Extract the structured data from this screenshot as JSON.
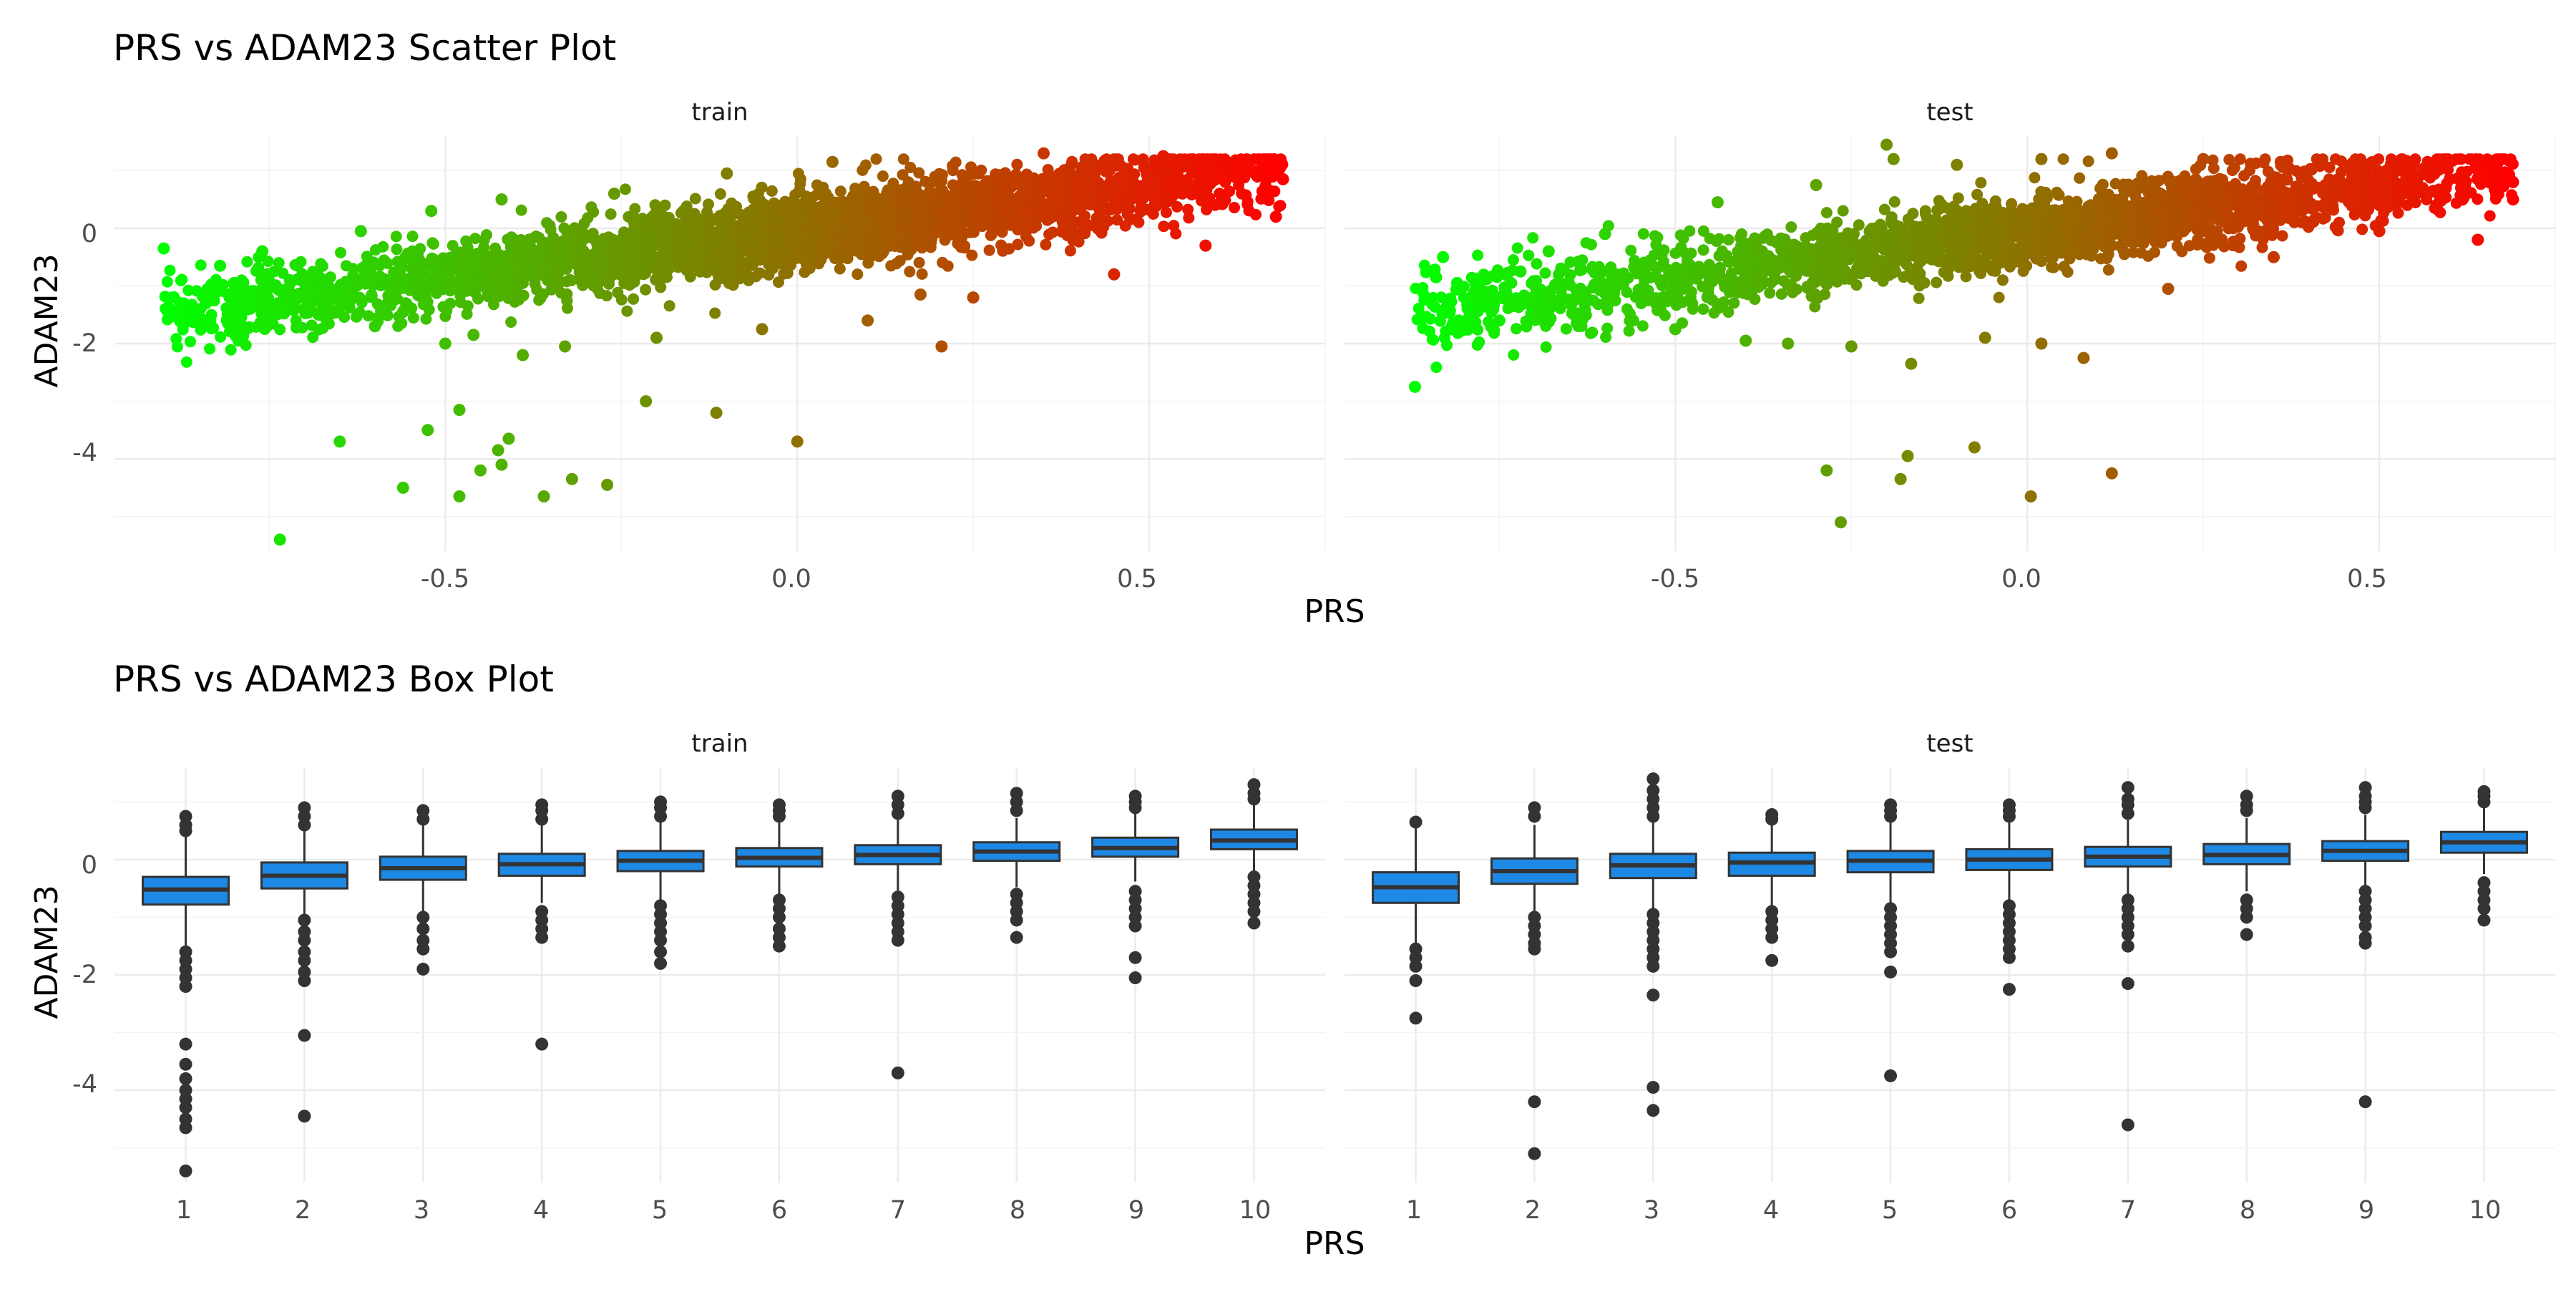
{
  "chart_data": [
    {
      "type": "scatter",
      "title": "PRS vs ADAM23 Scatter Plot",
      "xlabel": "PRS",
      "ylabel": "ADAM23",
      "xlim": [
        -0.97,
        0.75
      ],
      "ylim": [
        -5.6,
        1.6
      ],
      "x_ticks": [
        -0.5,
        0.0,
        0.5
      ],
      "x_tick_labels": [
        "-0.5",
        "0.0",
        "0.5"
      ],
      "y_ticks": [
        -4,
        -2,
        0
      ],
      "y_tick_labels": [
        "-4",
        "-2",
        "0"
      ],
      "grid": true,
      "color_scale": {
        "low": "#00ff00",
        "high": "#ff0000"
      },
      "approx_relationship": {
        "slope": 1.6,
        "intercept": -0.05
      },
      "facets": [
        {
          "label": "train",
          "x_range": [
            -0.9,
            0.69
          ],
          "points": [
            [
              -0.9,
              -0.35
            ],
            [
              -0.86,
              -1.45
            ],
            [
              -0.84,
              -1.3
            ],
            [
              -0.83,
              -1.05
            ],
            [
              -0.82,
              -0.65
            ],
            [
              -0.8,
              -1.6
            ],
            [
              -0.8,
              -0.95
            ],
            [
              -0.78,
              -1.2
            ],
            [
              -0.76,
              -0.4
            ],
            [
              -0.75,
              -1.35
            ],
            [
              -0.72,
              -1.25
            ],
            [
              -0.7,
              -0.9
            ],
            [
              -0.68,
              -1.5
            ],
            [
              -0.66,
              -1.1
            ],
            [
              -0.62,
              -0.05
            ],
            [
              -0.6,
              -1.7
            ],
            [
              -0.56,
              -1.45
            ],
            [
              -0.52,
              0.3
            ],
            [
              -0.5,
              -2.0
            ],
            [
              -0.46,
              -1.85
            ],
            [
              -0.42,
              0.5
            ],
            [
              -0.39,
              -2.2
            ],
            [
              -0.33,
              -2.05
            ],
            [
              -0.26,
              0.6
            ],
            [
              -0.2,
              -1.9
            ],
            [
              -0.1,
              0.95
            ],
            [
              -0.05,
              -1.75
            ],
            [
              0.05,
              1.15
            ],
            [
              0.1,
              -1.6
            ],
            [
              0.25,
              -1.2
            ],
            [
              0.35,
              1.3
            ],
            [
              0.45,
              -0.8
            ],
            [
              0.52,
              1.25
            ],
            [
              0.58,
              -0.3
            ],
            [
              0.65,
              0.95
            ],
            [
              0.69,
              0.85
            ],
            [
              0.68,
              0.2
            ],
            [
              0.67,
              0.6
            ],
            [
              0.63,
              1.0
            ],
            [
              -0.735,
              -5.4
            ],
            [
              -0.65,
              -3.7
            ],
            [
              -0.56,
              -4.5
            ],
            [
              -0.525,
              -3.5
            ],
            [
              -0.48,
              -3.15
            ],
            [
              -0.48,
              -4.65
            ],
            [
              -0.45,
              -4.2
            ],
            [
              -0.425,
              -3.85
            ],
            [
              -0.42,
              -4.1
            ],
            [
              -0.41,
              -3.65
            ],
            [
              -0.36,
              -4.65
            ],
            [
              -0.32,
              -4.35
            ],
            [
              -0.27,
              -4.45
            ],
            [
              -0.215,
              -3.0
            ],
            [
              -0.115,
              -3.2
            ],
            [
              0.0,
              -3.7
            ],
            [
              0.175,
              -1.15
            ],
            [
              0.205,
              -2.05
            ]
          ]
        },
        {
          "label": "test",
          "x_range": [
            -0.87,
            0.69
          ],
          "points": [
            [
              -0.87,
              -2.75
            ],
            [
              -0.84,
              -0.85
            ],
            [
              -0.83,
              -0.5
            ],
            [
              -0.82,
              -1.75
            ],
            [
              -0.81,
              -0.95
            ],
            [
              -0.75,
              -1.6
            ],
            [
              -0.73,
              -1.35
            ],
            [
              -0.72,
              -0.75
            ],
            [
              -0.7,
              -1.2
            ],
            [
              -0.68,
              -0.4
            ],
            [
              -0.64,
              -1.65
            ],
            [
              -0.6,
              -0.1
            ],
            [
              -0.56,
              -1.6
            ],
            [
              -0.5,
              -1.75
            ],
            [
              -0.44,
              0.45
            ],
            [
              -0.4,
              -1.95
            ],
            [
              -0.34,
              -2.0
            ],
            [
              -0.3,
              0.75
            ],
            [
              -0.25,
              -2.05
            ],
            [
              -0.2,
              1.45
            ],
            [
              -0.19,
              1.2
            ],
            [
              -0.1,
              1.1
            ],
            [
              0.02,
              1.2
            ],
            [
              0.12,
              1.3
            ],
            [
              0.25,
              1.2
            ],
            [
              0.36,
              1.15
            ],
            [
              0.5,
              0.95
            ],
            [
              0.6,
              0.85
            ],
            [
              0.69,
              0.8
            ],
            [
              0.69,
              0.5
            ],
            [
              0.64,
              -0.2
            ],
            [
              0.5,
              -0.05
            ],
            [
              0.35,
              -0.5
            ],
            [
              0.2,
              -1.05
            ],
            [
              0.08,
              -2.25
            ],
            [
              0.02,
              -2.0
            ],
            [
              -0.285,
              -4.2
            ],
            [
              -0.265,
              -5.1
            ],
            [
              -0.18,
              -4.35
            ],
            [
              -0.17,
              -3.95
            ],
            [
              -0.075,
              -3.8
            ],
            [
              0.005,
              -4.65
            ],
            [
              0.12,
              -4.25
            ],
            [
              -0.165,
              -2.35
            ],
            [
              -0.06,
              -1.9
            ]
          ]
        }
      ]
    },
    {
      "type": "box",
      "title": "PRS vs ADAM23 Box Plot",
      "xlabel": "PRS",
      "ylabel": "ADAM23",
      "categories": [
        "1",
        "2",
        "3",
        "4",
        "5",
        "6",
        "7",
        "8",
        "9",
        "10"
      ],
      "ylim": [
        -5.6,
        1.6
      ],
      "y_ticks": [
        -4,
        -2,
        0
      ],
      "y_tick_labels": [
        "-4",
        "-2",
        "0"
      ],
      "grid": true,
      "box_color": "#1e88e5",
      "facets": [
        {
          "label": "train",
          "boxes": [
            {
              "q1": -0.78,
              "median": -0.52,
              "q3": -0.3,
              "lower": -1.5,
              "upper": 0.4,
              "outliers": [
                0.5,
                0.6,
                0.75,
                -1.6,
                -1.75,
                -1.9,
                -2.05,
                -2.2,
                -3.2,
                -3.55,
                -3.8,
                -4.0,
                -4.15,
                -4.3,
                -4.5,
                -4.65,
                -5.4
              ]
            },
            {
              "q1": -0.5,
              "median": -0.28,
              "q3": -0.05,
              "lower": -0.95,
              "upper": 0.5,
              "outliers": [
                0.6,
                0.75,
                0.9,
                -1.05,
                -1.25,
                -1.4,
                -1.6,
                -1.75,
                -1.95,
                -2.1,
                -3.05,
                -4.45
              ]
            },
            {
              "q1": -0.35,
              "median": -0.15,
              "q3": 0.05,
              "lower": -0.9,
              "upper": 0.6,
              "outliers": [
                0.7,
                0.85,
                -1.0,
                -1.2,
                -1.4,
                -1.55,
                -1.9
              ]
            },
            {
              "q1": -0.28,
              "median": -0.08,
              "q3": 0.1,
              "lower": -0.75,
              "upper": 0.62,
              "outliers": [
                0.7,
                0.85,
                0.95,
                -0.9,
                -1.05,
                -1.2,
                -1.35,
                -3.2
              ]
            },
            {
              "q1": -0.2,
              "median": -0.02,
              "q3": 0.15,
              "lower": -0.7,
              "upper": 0.65,
              "outliers": [
                0.75,
                0.9,
                1.0,
                -0.8,
                -0.95,
                -1.1,
                -1.25,
                -1.4,
                -1.6,
                -1.8
              ]
            },
            {
              "q1": -0.12,
              "median": 0.03,
              "q3": 0.2,
              "lower": -0.6,
              "upper": 0.65,
              "outliers": [
                0.75,
                0.85,
                0.95,
                -0.7,
                -0.85,
                -1.0,
                -1.2,
                -1.35,
                -1.5
              ]
            },
            {
              "q1": -0.08,
              "median": 0.08,
              "q3": 0.25,
              "lower": -0.55,
              "upper": 0.72,
              "outliers": [
                0.8,
                0.95,
                1.1,
                -0.65,
                -0.8,
                -0.95,
                -1.1,
                -1.25,
                -1.4,
                -3.7
              ]
            },
            {
              "q1": -0.02,
              "median": 0.14,
              "q3": 0.3,
              "lower": -0.48,
              "upper": 0.72,
              "outliers": [
                0.85,
                1.0,
                1.15,
                -0.6,
                -0.75,
                -0.9,
                -1.05,
                -1.35
              ]
            },
            {
              "q1": 0.05,
              "median": 0.2,
              "q3": 0.38,
              "lower": -0.38,
              "upper": 0.8,
              "outliers": [
                0.9,
                1.0,
                1.1,
                -0.55,
                -0.7,
                -0.85,
                -1.0,
                -1.15,
                -1.7,
                -2.05
              ]
            },
            {
              "q1": 0.18,
              "median": 0.33,
              "q3": 0.52,
              "lower": -0.2,
              "upper": 0.95,
              "outliers": [
                1.05,
                1.15,
                1.3,
                -0.3,
                -0.45,
                -0.6,
                -0.75,
                -0.9,
                -1.1
              ]
            }
          ]
        },
        {
          "label": "test",
          "boxes": [
            {
              "q1": -0.75,
              "median": -0.48,
              "q3": -0.22,
              "lower": -1.45,
              "upper": 0.55,
              "outliers": [
                0.65,
                -1.55,
                -1.7,
                -1.85,
                -2.1,
                -2.75
              ]
            },
            {
              "q1": -0.42,
              "median": -0.2,
              "q3": 0.02,
              "lower": -0.95,
              "upper": 0.6,
              "outliers": [
                0.75,
                0.9,
                -1.0,
                -1.15,
                -1.3,
                -1.45,
                -1.55,
                -4.2,
                -5.1
              ]
            },
            {
              "q1": -0.32,
              "median": -0.1,
              "q3": 0.1,
              "lower": -0.85,
              "upper": 0.65,
              "outliers": [
                0.75,
                0.9,
                1.05,
                1.2,
                1.4,
                -0.95,
                -1.1,
                -1.25,
                -1.4,
                -1.55,
                -1.7,
                -1.85,
                -2.35,
                -3.95,
                -4.35
              ]
            },
            {
              "q1": -0.28,
              "median": -0.05,
              "q3": 0.12,
              "lower": -0.8,
              "upper": 0.6,
              "outliers": [
                0.7,
                0.78,
                -0.9,
                -1.05,
                -1.2,
                -1.35,
                -1.75
              ]
            },
            {
              "q1": -0.22,
              "median": -0.02,
              "q3": 0.15,
              "lower": -0.75,
              "upper": 0.65,
              "outliers": [
                0.75,
                0.85,
                0.95,
                -0.85,
                -1.0,
                -1.15,
                -1.3,
                -1.45,
                -1.6,
                -1.95,
                -3.75
              ]
            },
            {
              "q1": -0.18,
              "median": 0.0,
              "q3": 0.18,
              "lower": -0.7,
              "upper": 0.65,
              "outliers": [
                0.75,
                0.85,
                0.95,
                -0.8,
                -0.95,
                -1.1,
                -1.25,
                -1.4,
                -1.55,
                -1.7,
                -2.25
              ]
            },
            {
              "q1": -0.12,
              "median": 0.05,
              "q3": 0.22,
              "lower": -0.6,
              "upper": 0.7,
              "outliers": [
                0.8,
                0.95,
                1.05,
                1.25,
                -0.7,
                -0.85,
                -1.0,
                -1.15,
                -1.3,
                -1.5,
                -2.15,
                -4.6
              ]
            },
            {
              "q1": -0.08,
              "median": 0.08,
              "q3": 0.27,
              "lower": -0.55,
              "upper": 0.72,
              "outliers": [
                0.85,
                0.95,
                1.1,
                -0.7,
                -0.85,
                -1.0,
                -1.3
              ]
            },
            {
              "q1": -0.02,
              "median": 0.15,
              "q3": 0.32,
              "lower": -0.45,
              "upper": 0.78,
              "outliers": [
                0.9,
                1.0,
                1.1,
                1.25,
                -0.55,
                -0.7,
                -0.85,
                -1.0,
                -1.15,
                -1.35,
                -1.45,
                -4.2
              ]
            },
            {
              "q1": 0.12,
              "median": 0.3,
              "q3": 0.48,
              "lower": -0.25,
              "upper": 0.9,
              "outliers": [
                1.0,
                1.1,
                1.18,
                -0.4,
                -0.55,
                -0.7,
                -0.85,
                -1.05
              ]
            }
          ]
        }
      ]
    }
  ]
}
